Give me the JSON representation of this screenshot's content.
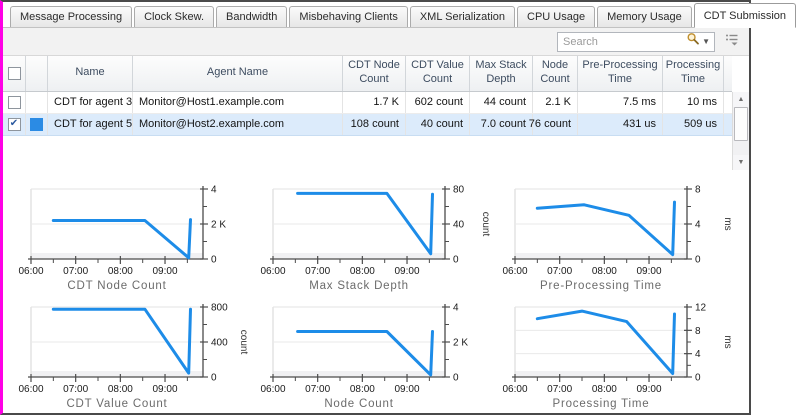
{
  "window": {
    "title": "CDT Submission"
  },
  "tabs": {
    "items": [
      {
        "label": "Message Processing",
        "active": false
      },
      {
        "label": "Clock Skew.",
        "active": false
      },
      {
        "label": "Bandwidth",
        "active": false
      },
      {
        "label": "Misbehaving Clients",
        "active": false
      },
      {
        "label": "XML Serialization",
        "active": false
      },
      {
        "label": "CPU Usage",
        "active": false
      },
      {
        "label": "Memory Usage",
        "active": false
      },
      {
        "label": "CDT Submission",
        "active": true
      }
    ]
  },
  "toolbar": {
    "search_placeholder": "Search",
    "icons": [
      "search-icon",
      "dropdown-caret-icon",
      "column-chooser-icon"
    ]
  },
  "table": {
    "columns": [
      {
        "key": "name",
        "label": "Name"
      },
      {
        "key": "agent",
        "label": "Agent Name"
      },
      {
        "key": "cdt_node_count",
        "label": "CDT Node Count"
      },
      {
        "key": "cdt_value_count",
        "label": "CDT Value Count"
      },
      {
        "key": "max_stack_depth",
        "label": "Max Stack Depth"
      },
      {
        "key": "node_count",
        "label": "Node Count"
      },
      {
        "key": "pre_processing_time",
        "label": "Pre-Processing Time"
      },
      {
        "key": "processing_time",
        "label": "Processing Time"
      }
    ],
    "rows": [
      {
        "checked": false,
        "selected": false,
        "swatch": null,
        "name": "CDT for agent 3",
        "agent": "Monitor@Host1.example.com",
        "cdt_node_count": "1.7 K",
        "cdt_value_count": "602 count",
        "max_stack_depth": "44 count",
        "node_count": "2.1 K",
        "pre_processing_time": "7.5 ms",
        "processing_time": "10 ms"
      },
      {
        "checked": true,
        "selected": true,
        "swatch": "#2b8be4",
        "name": "CDT for agent 5",
        "agent": "Monitor@Host2.example.com",
        "cdt_node_count": "108 count",
        "cdt_value_count": "40 count",
        "max_stack_depth": "7.0 count",
        "node_count": "76 count",
        "pre_processing_time": "431 us",
        "processing_time": "509 us"
      }
    ]
  },
  "colors": {
    "line_blue": "#1d8ce8",
    "selection_bg": "#dcebfb",
    "swatch_blue": "#2b8be4",
    "left_border_magenta": "#ff00e6"
  },
  "chart_data": [
    {
      "type": "line",
      "title": "CDT Node Count",
      "unit": "",
      "xrange": [
        6,
        9.85
      ],
      "ymax": 4,
      "xticks": [
        [
          6,
          "06:00"
        ],
        [
          7,
          "07:00"
        ],
        [
          8,
          "08:00"
        ],
        [
          9,
          "09:00"
        ]
      ],
      "xminor": [
        6.5,
        7.5,
        8.5,
        9.5
      ],
      "yticks": [
        [
          4,
          "4"
        ],
        [
          2,
          "2 K"
        ],
        [
          0,
          "0"
        ]
      ],
      "yminor": [
        3,
        1
      ],
      "points": [
        [
          6.5,
          2.2
        ],
        [
          8.55,
          2.2
        ],
        [
          9.53,
          0.07
        ],
        [
          9.57,
          2.25
        ]
      ]
    },
    {
      "type": "line",
      "title": "Max Stack Depth",
      "unit": "count",
      "xrange": [
        6,
        9.85
      ],
      "ymax": 80,
      "xticks": [
        [
          6,
          "06:00"
        ],
        [
          7,
          "07:00"
        ],
        [
          8,
          "08:00"
        ],
        [
          9,
          "09:00"
        ]
      ],
      "xminor": [
        6.5,
        7.5,
        8.5,
        9.5
      ],
      "yticks": [
        [
          80,
          "80"
        ],
        [
          40,
          "40"
        ],
        [
          0,
          "0"
        ]
      ],
      "yminor": [
        60,
        20
      ],
      "points": [
        [
          6.55,
          75
        ],
        [
          8.55,
          75
        ],
        [
          9.53,
          6
        ],
        [
          9.57,
          74
        ]
      ]
    },
    {
      "type": "line",
      "title": "Pre-Processing Time",
      "unit": "ms",
      "xrange": [
        6,
        9.85
      ],
      "ymax": 8,
      "xticks": [
        [
          6,
          "06:00"
        ],
        [
          7,
          "07:00"
        ],
        [
          8,
          "08:00"
        ],
        [
          9,
          "09:00"
        ]
      ],
      "xminor": [
        6.5,
        7.5,
        8.5,
        9.5
      ],
      "yticks": [
        [
          8,
          "8"
        ],
        [
          4,
          "4"
        ],
        [
          0,
          "0"
        ]
      ],
      "yminor": [
        6,
        2
      ],
      "points": [
        [
          6.5,
          5.8
        ],
        [
          7.55,
          6.2
        ],
        [
          8.55,
          5.0
        ],
        [
          9.53,
          0.5
        ],
        [
          9.57,
          6.5
        ]
      ]
    },
    {
      "type": "line",
      "title": "CDT Value Count",
      "unit": "count",
      "xrange": [
        6,
        9.85
      ],
      "ymax": 800,
      "xticks": [
        [
          6,
          "06:00"
        ],
        [
          7,
          "07:00"
        ],
        [
          8,
          "08:00"
        ],
        [
          9,
          "09:00"
        ]
      ],
      "xminor": [
        6.5,
        7.5,
        8.5,
        9.5
      ],
      "yticks": [
        [
          800,
          "800"
        ],
        [
          400,
          "400"
        ],
        [
          0,
          "0"
        ]
      ],
      "yminor": [
        600,
        200
      ],
      "points": [
        [
          6.5,
          775
        ],
        [
          8.55,
          775
        ],
        [
          9.53,
          45
        ],
        [
          9.57,
          775
        ]
      ]
    },
    {
      "type": "line",
      "title": "Node Count",
      "unit": "",
      "xrange": [
        6,
        9.85
      ],
      "ymax": 4,
      "xticks": [
        [
          6,
          "06:00"
        ],
        [
          7,
          "07:00"
        ],
        [
          8,
          "08:00"
        ],
        [
          9,
          "09:00"
        ]
      ],
      "xminor": [
        6.5,
        7.5,
        8.5,
        9.5
      ],
      "yticks": [
        [
          4,
          "4"
        ],
        [
          2,
          "2 K"
        ],
        [
          0,
          "0"
        ]
      ],
      "yminor": [
        3,
        1
      ],
      "points": [
        [
          6.55,
          2.6
        ],
        [
          8.55,
          2.6
        ],
        [
          9.53,
          0.12
        ],
        [
          9.57,
          2.6
        ]
      ]
    },
    {
      "type": "line",
      "title": "Processing Time",
      "unit": "ms",
      "xrange": [
        6,
        9.85
      ],
      "ymax": 12,
      "xticks": [
        [
          6,
          "06:00"
        ],
        [
          7,
          "07:00"
        ],
        [
          8,
          "08:00"
        ],
        [
          9,
          "09:00"
        ]
      ],
      "xminor": [
        6.5,
        7.5,
        8.5,
        9.5
      ],
      "yticks": [
        [
          12,
          "12"
        ],
        [
          8,
          "8"
        ],
        [
          4,
          "4"
        ],
        [
          0,
          "0"
        ]
      ],
      "yminor": [
        10,
        6,
        2
      ],
      "points": [
        [
          6.5,
          10.0
        ],
        [
          7.5,
          11.3
        ],
        [
          8.5,
          9.5
        ],
        [
          9.53,
          0.6
        ],
        [
          9.57,
          10.8
        ]
      ]
    }
  ]
}
